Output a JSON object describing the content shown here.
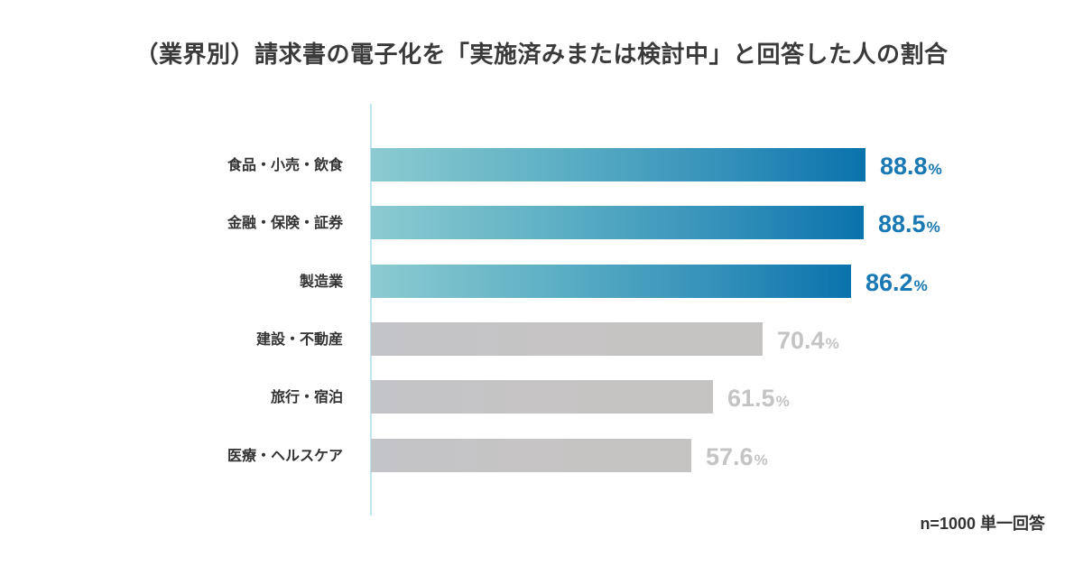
{
  "title": "（業界別）請求書の電子化を「実施済みまたは検討中」と回答した人の割合",
  "note": "n=1000 単一回答",
  "colors": {
    "highlight_start": "#8ccbd0",
    "highlight_end": "#0a72ac",
    "highlight_text": "#1a78b4",
    "gray_bar": "#c4c4c4",
    "gray_text": "#c4c4c4",
    "axis": "#bfe6ef"
  },
  "chart_data": {
    "type": "bar",
    "orientation": "horizontal",
    "title": "（業界別）請求書の電子化を「実施済みまたは検討中」と回答した人の割合",
    "categories": [
      "食品・小売・飲食",
      "金融・保険・証券",
      "製造業",
      "建設・不動産",
      "旅行・宿泊",
      "医療・ヘルスケア"
    ],
    "values": [
      88.8,
      88.5,
      86.2,
      70.4,
      61.5,
      57.6
    ],
    "unit": "%",
    "highlighted": [
      true,
      true,
      true,
      false,
      false,
      false
    ],
    "xlabel": "",
    "ylabel": "",
    "grid": false,
    "annotation": "n=1000 単一回答"
  },
  "rows": [
    {
      "label": "食品・小売・飲食",
      "value": "88.8",
      "pct": "%"
    },
    {
      "label": "金融・保険・証券",
      "value": "88.5",
      "pct": "%"
    },
    {
      "label": "製造業",
      "value": "86.2",
      "pct": "%"
    },
    {
      "label": "建設・不動産",
      "value": "70.4",
      "pct": "%"
    },
    {
      "label": "旅行・宿泊",
      "value": "61.5",
      "pct": "%"
    },
    {
      "label": "医療・ヘルスケア",
      "value": "57.6",
      "pct": "%"
    }
  ]
}
